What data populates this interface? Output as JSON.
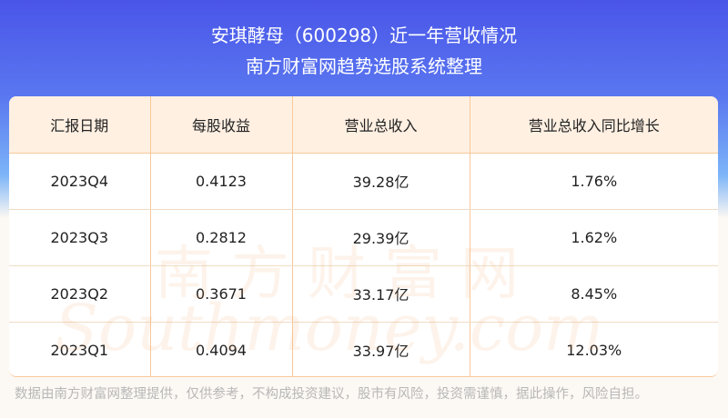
{
  "header": {
    "title": "安琪酵母（600298）近一年营收情况",
    "subtitle": "南方财富网趋势选股系统整理"
  },
  "table": {
    "columns": [
      "汇报日期",
      "每股收益",
      "营业总收入",
      "营业总收入同比增长"
    ],
    "rows": [
      [
        "2023Q4",
        "0.4123",
        "39.28亿",
        "1.76%"
      ],
      [
        "2023Q3",
        "0.2812",
        "29.39亿",
        "1.62%"
      ],
      [
        "2023Q2",
        "0.3671",
        "33.17亿",
        "8.45%"
      ],
      [
        "2023Q1",
        "0.4094",
        "33.97亿",
        "12.03%"
      ]
    ]
  },
  "watermark": {
    "cn": "南方财富网",
    "en": "Southmoney.com"
  },
  "footer": "数据由南方财富网整理提供，仅供参考，不构成投资建议，股市有风险，投资需谨慎，据此操作，风险自担。",
  "colors": {
    "header_bg": "#fff0e2",
    "border": "#f7c89a",
    "banner": "#4a55e8"
  }
}
